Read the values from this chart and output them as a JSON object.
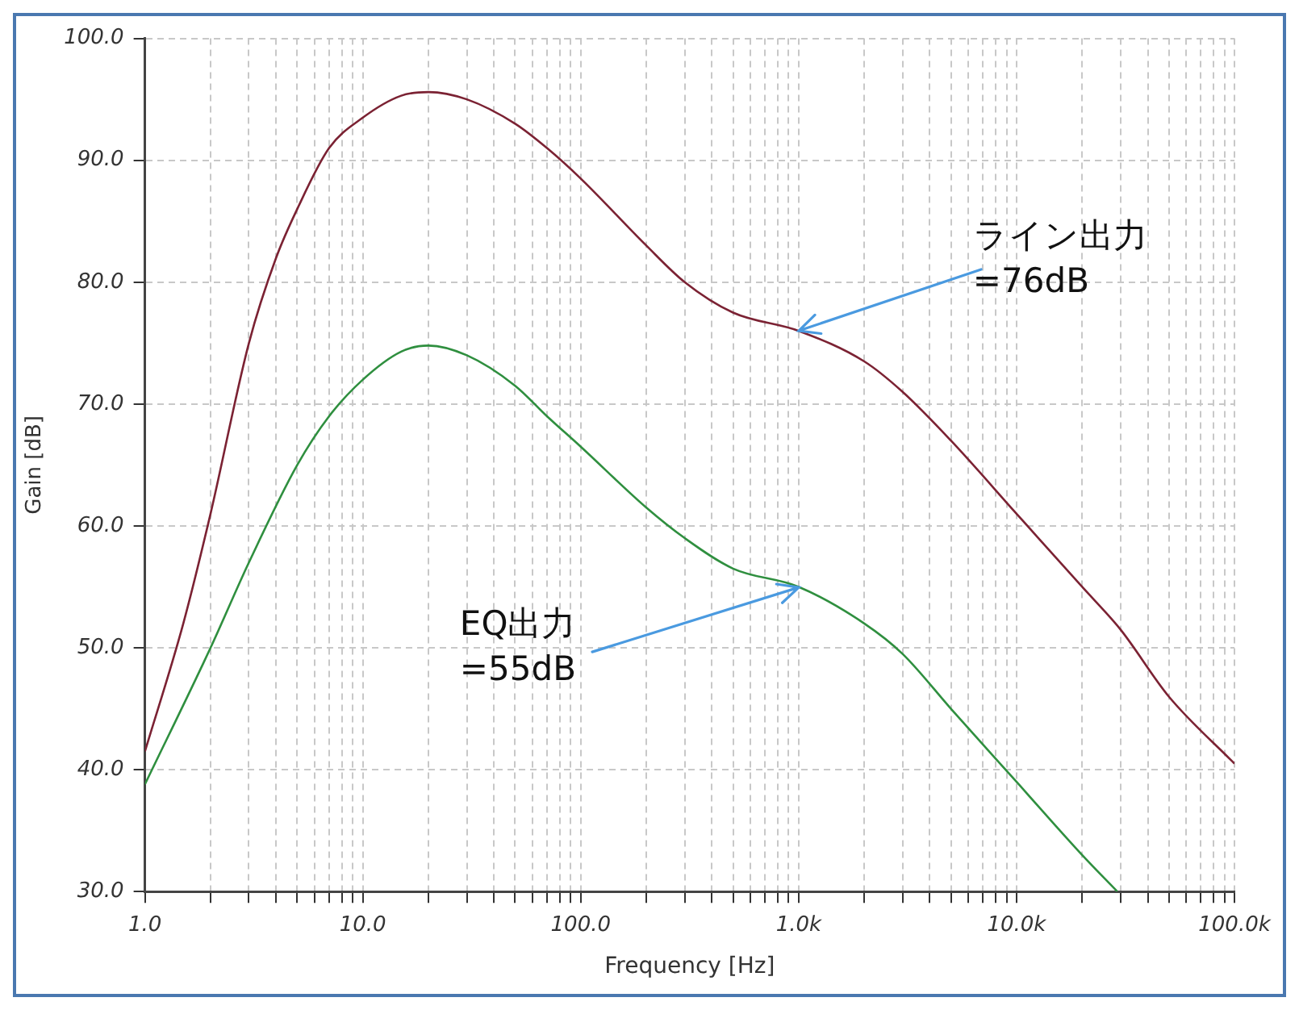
{
  "chart_data": {
    "type": "line",
    "xlabel": "Frequency [Hz]",
    "ylabel": "Gain [dB]",
    "log": "x",
    "grid": true,
    "marker": "none",
    "line_style": "solid",
    "legend": false,
    "xlim": [
      1,
      100000
    ],
    "ylim": [
      30,
      100
    ],
    "xticks": [
      {
        "value": 1,
        "label": "1.0"
      },
      {
        "value": 2,
        "label": null
      },
      {
        "value": 3,
        "label": null
      },
      {
        "value": 4,
        "label": null
      },
      {
        "value": 5,
        "label": null
      },
      {
        "value": 6,
        "label": null
      },
      {
        "value": 7,
        "label": null
      },
      {
        "value": 8,
        "label": null
      },
      {
        "value": 9,
        "label": null
      },
      {
        "value": 10,
        "label": "10.0"
      },
      {
        "value": 20,
        "label": null
      },
      {
        "value": 30,
        "label": null
      },
      {
        "value": 40,
        "label": null
      },
      {
        "value": 50,
        "label": null
      },
      {
        "value": 60,
        "label": null
      },
      {
        "value": 70,
        "label": null
      },
      {
        "value": 80,
        "label": null
      },
      {
        "value": 90,
        "label": null
      },
      {
        "value": 100,
        "label": "100.0"
      },
      {
        "value": 200,
        "label": null
      },
      {
        "value": 300,
        "label": null
      },
      {
        "value": 400,
        "label": null
      },
      {
        "value": 500,
        "label": null
      },
      {
        "value": 600,
        "label": null
      },
      {
        "value": 700,
        "label": null
      },
      {
        "value": 800,
        "label": null
      },
      {
        "value": 900,
        "label": null
      },
      {
        "value": 1000,
        "label": "1.0k"
      },
      {
        "value": 2000,
        "label": null
      },
      {
        "value": 3000,
        "label": null
      },
      {
        "value": 4000,
        "label": null
      },
      {
        "value": 5000,
        "label": null
      },
      {
        "value": 6000,
        "label": null
      },
      {
        "value": 7000,
        "label": null
      },
      {
        "value": 8000,
        "label": null
      },
      {
        "value": 9000,
        "label": null
      },
      {
        "value": 10000,
        "label": "10.0k"
      },
      {
        "value": 20000,
        "label": null
      },
      {
        "value": 30000,
        "label": null
      },
      {
        "value": 40000,
        "label": null
      },
      {
        "value": 50000,
        "label": null
      },
      {
        "value": 60000,
        "label": null
      },
      {
        "value": 70000,
        "label": null
      },
      {
        "value": 80000,
        "label": null
      },
      {
        "value": 90000,
        "label": null
      },
      {
        "value": 100000,
        "label": "100.0k"
      }
    ],
    "yticks": [
      {
        "value": 30,
        "label": "30.0"
      },
      {
        "value": 40,
        "label": "40.0"
      },
      {
        "value": 50,
        "label": "50.0"
      },
      {
        "value": 60,
        "label": "60.0"
      },
      {
        "value": 70,
        "label": "70.0"
      },
      {
        "value": 80,
        "label": "80.0"
      },
      {
        "value": 90,
        "label": "90.0"
      },
      {
        "value": 100,
        "label": "100.0"
      }
    ],
    "series": [
      {
        "color": "#7b2233",
        "x": [
          1,
          1.5,
          2,
          3,
          4,
          5,
          7,
          10,
          15,
          20,
          30,
          50,
          70,
          100,
          200,
          300,
          500,
          1000,
          2000,
          3000,
          5000,
          10000,
          20000,
          30000,
          50000,
          100000
        ],
        "values": [
          41.5,
          52,
          61,
          75,
          82,
          86,
          91,
          93.5,
          95.3,
          95.6,
          95,
          93,
          91,
          88.5,
          83,
          80,
          77.5,
          76,
          73.5,
          71,
          67,
          61,
          55,
          51.5,
          46,
          40.5
        ]
      },
      {
        "color": "#2f8f3f",
        "x": [
          1,
          2,
          3,
          5,
          7,
          10,
          15,
          20,
          30,
          50,
          70,
          100,
          200,
          300,
          500,
          1000,
          2000,
          3000,
          5000,
          10000,
          20000,
          29000
        ],
        "values": [
          38.8,
          50,
          57,
          65,
          69,
          72,
          74.3,
          74.8,
          74,
          71.5,
          69,
          66.5,
          61.5,
          59,
          56.5,
          55,
          52,
          49.5,
          45,
          39,
          33,
          30
        ]
      }
    ],
    "annotations": [
      {
        "text": "ライン出力\n=76dB",
        "x": 1000,
        "y": 76
      },
      {
        "text": "EQ出力\n=55dB",
        "x": 1000,
        "y": 55
      }
    ]
  }
}
